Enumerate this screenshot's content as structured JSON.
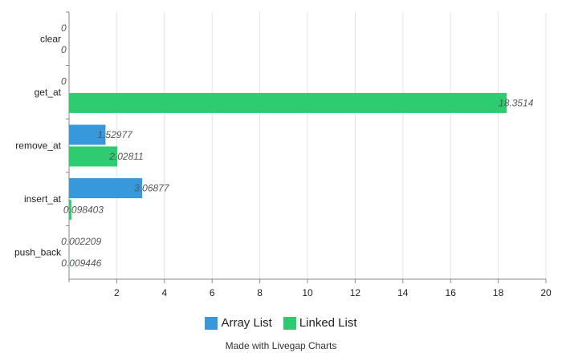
{
  "chart_data": {
    "type": "bar",
    "orientation": "horizontal",
    "categories": [
      "clear",
      "get_at",
      "remove_at",
      "insert_at",
      "push_back"
    ],
    "series": [
      {
        "name": "Array List",
        "color": "#3799db",
        "values": [
          0,
          0,
          1.52977,
          3.06877,
          0.002209
        ]
      },
      {
        "name": "Linked List",
        "color": "#2ecc71",
        "values": [
          0,
          18.3514,
          2.02811,
          0.098403,
          0.009446
        ]
      }
    ],
    "data_labels": [
      [
        "0",
        "0",
        "1.52977",
        "3.06877",
        "0.002209"
      ],
      [
        "0",
        "18.3514",
        "2.02811",
        "0.098403",
        "0.009446"
      ]
    ],
    "xlim": [
      0,
      20
    ],
    "xticks": [
      "2",
      "4",
      "6",
      "8",
      "10",
      "12",
      "14",
      "16",
      "18",
      "20"
    ],
    "xtick_values": [
      2,
      4,
      6,
      8,
      10,
      12,
      14,
      16,
      18,
      20
    ],
    "grid": true,
    "legend_position": "bottom-center"
  },
  "footer": {
    "credit": "Made with Livegap Charts"
  }
}
